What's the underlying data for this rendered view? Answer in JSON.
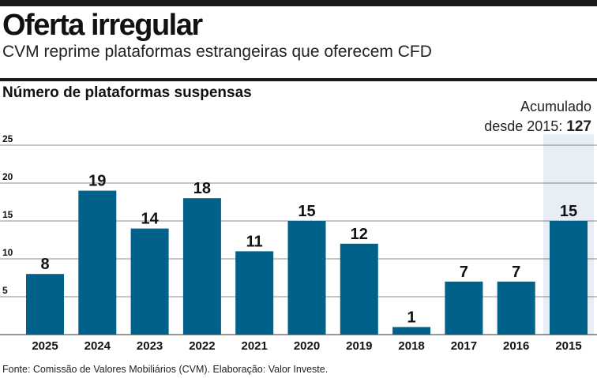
{
  "header": {
    "title": "Oferta irregular",
    "subtitle": "CVM reprime plataformas estrangeiras que oferecem CFD"
  },
  "chart_title": "Número de plataformas suspensas",
  "cumulative": {
    "label_line1": "Acumulado",
    "label_line2": "desde 2015:",
    "value": "127"
  },
  "source": "Fonte: Comissão de Valores Mobiliários (CVM). Elaboração: Valor Investe.",
  "colors": {
    "bar": "#00618a",
    "highlight_band": "#e8eef5",
    "grid": "#666666"
  },
  "chart_data": {
    "type": "bar",
    "title": "Número de plataformas suspensas",
    "categories": [
      "2025",
      "2024",
      "2023",
      "2022",
      "2021",
      "2020",
      "2019",
      "2018",
      "2017",
      "2016",
      "2015"
    ],
    "values": [
      8,
      19,
      14,
      18,
      11,
      15,
      12,
      1,
      7,
      7,
      15
    ],
    "ylim": [
      0,
      25
    ],
    "yticks": [
      5,
      10,
      15,
      20,
      25
    ],
    "grid": true,
    "highlighted_category": "2015",
    "xlabel": "",
    "ylabel": ""
  }
}
